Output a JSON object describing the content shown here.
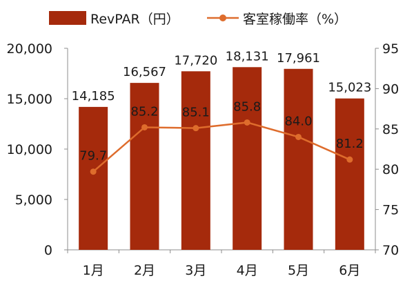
{
  "chart_data": {
    "type": "bar",
    "categories": [
      "1月",
      "2月",
      "3月",
      "4月",
      "5月",
      "6月"
    ],
    "series": [
      {
        "name": "RevPAR（円）",
        "type": "bar",
        "axis": "left",
        "color": "#a52a0c",
        "values": [
          14185,
          16567,
          17720,
          18131,
          17961,
          15023
        ],
        "labels": [
          "14,185",
          "16,567",
          "17,720",
          "18,131",
          "17,961",
          "15,023"
        ]
      },
      {
        "name": "客室稼働率（%）",
        "type": "line",
        "axis": "right",
        "color": "#de6c2c",
        "values": [
          79.7,
          85.2,
          85.1,
          85.8,
          84.0,
          81.2
        ],
        "labels": [
          "79.7",
          "85.2",
          "85.1",
          "85.8",
          "84.0",
          "81.2"
        ]
      }
    ],
    "y_left": {
      "ylim": [
        0,
        20000
      ],
      "ticks": [
        0,
        5000,
        10000,
        15000,
        20000
      ],
      "tick_labels": [
        "0",
        "5,000",
        "10,000",
        "15,000",
        "20,000"
      ]
    },
    "y_right": {
      "ylim": [
        70,
        95
      ],
      "ticks": [
        70,
        75,
        80,
        85,
        90,
        95
      ],
      "tick_labels": [
        "70",
        "75",
        "80",
        "85",
        "90",
        "95"
      ]
    },
    "legend_position": "top",
    "grid": false
  }
}
